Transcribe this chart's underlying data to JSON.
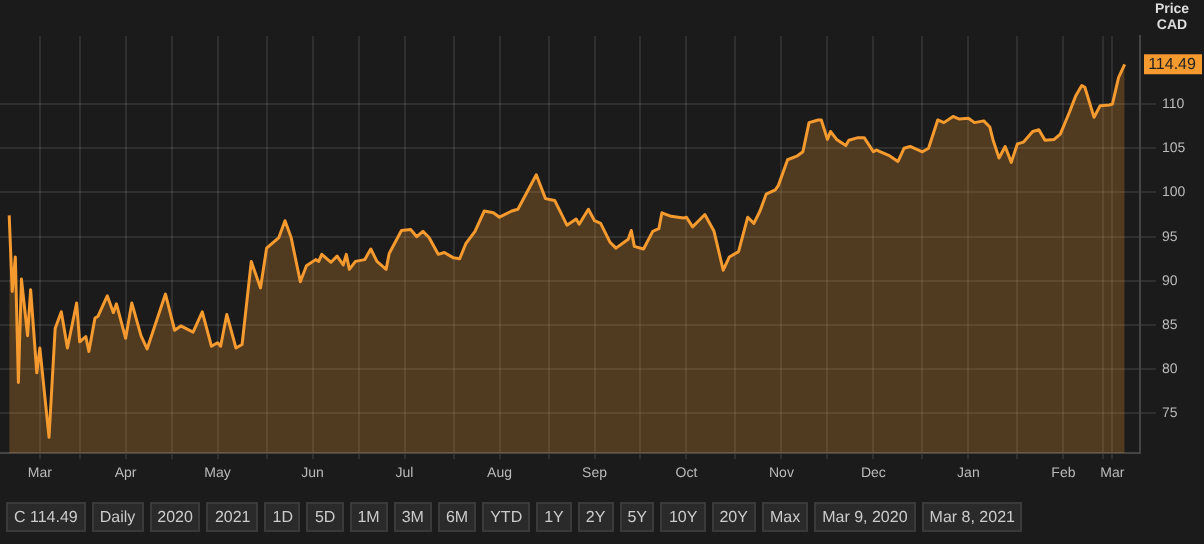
{
  "chart_data": {
    "type": "area",
    "ylabel": "Price CAD",
    "xlim": [
      "2020-03-06",
      "2021-03-13"
    ],
    "ylim": [
      70.5,
      117.7
    ],
    "yticks": [
      75,
      80,
      85,
      90,
      95,
      100,
      105,
      110
    ],
    "xticks": [
      {
        "value": "2020-03-19",
        "label": "Mar"
      },
      {
        "value": "2020-04-01",
        "label": null
      },
      {
        "value": "2020-04-16",
        "label": "Apr"
      },
      {
        "value": "2020-05-01",
        "label": null
      },
      {
        "value": "2020-05-16",
        "label": "May"
      },
      {
        "value": "2020-06-01",
        "label": null
      },
      {
        "value": "2020-06-16",
        "label": "Jun"
      },
      {
        "value": "2020-07-01",
        "label": null
      },
      {
        "value": "2020-07-16",
        "label": "Jul"
      },
      {
        "value": "2020-08-01",
        "label": null
      },
      {
        "value": "2020-08-16",
        "label": "Aug"
      },
      {
        "value": "2020-09-01",
        "label": null
      },
      {
        "value": "2020-09-16",
        "label": "Sep"
      },
      {
        "value": "2020-10-01",
        "label": null
      },
      {
        "value": "2020-10-16",
        "label": "Oct"
      },
      {
        "value": "2020-11-01",
        "label": null
      },
      {
        "value": "2020-11-16",
        "label": "Nov"
      },
      {
        "value": "2020-12-01",
        "label": null
      },
      {
        "value": "2020-12-16",
        "label": "Dec"
      },
      {
        "value": "2021-01-01",
        "label": null
      },
      {
        "value": "2021-01-16",
        "label": "Jan"
      },
      {
        "value": "2021-02-01",
        "label": null
      },
      {
        "value": "2021-02-16",
        "label": "Feb"
      },
      {
        "value": "2021-03-01",
        "label": null
      },
      {
        "value": "2021-03-04",
        "label": "Mar"
      }
    ],
    "grid": true,
    "legend": false,
    "marker": "none",
    "annotations": [
      {
        "text": "114.49",
        "y": 114.49
      },
      "C 114.49",
      "Daily",
      "2020",
      "2021",
      "1D",
      "5D",
      "1M",
      "3M",
      "6M",
      "YTD",
      "1Y",
      "2Y",
      "5Y",
      "10Y",
      "20Y",
      "Max",
      "Mar 9, 2020",
      "Mar 8, 2021"
    ],
    "series": [
      {
        "color": "#f59a2f",
        "x": [
          "2020-03-09",
          "2020-03-10",
          "2020-03-11",
          "2020-03-12",
          "2020-03-13",
          "2020-03-15",
          "2020-03-16",
          "2020-03-18",
          "2020-03-19",
          "2020-03-22",
          "2020-03-24",
          "2020-03-26",
          "2020-03-28",
          "2020-03-31",
          "2020-04-01",
          "2020-04-03",
          "2020-04-04",
          "2020-04-06",
          "2020-04-07",
          "2020-04-10",
          "2020-04-12",
          "2020-04-13",
          "2020-04-16",
          "2020-04-18",
          "2020-04-21",
          "2020-04-23",
          "2020-04-29",
          "2020-05-02",
          "2020-05-04",
          "2020-05-08",
          "2020-05-11",
          "2020-05-14",
          "2020-05-16",
          "2020-05-17",
          "2020-05-19",
          "2020-05-22",
          "2020-05-24",
          "2020-05-27",
          "2020-05-30",
          "2020-06-01",
          "2020-06-05",
          "2020-06-07",
          "2020-06-09",
          "2020-06-12",
          "2020-06-14",
          "2020-06-17",
          "2020-06-18",
          "2020-06-19",
          "2020-06-22",
          "2020-06-24",
          "2020-06-26",
          "2020-06-27",
          "2020-06-28",
          "2020-06-30",
          "2020-07-03",
          "2020-07-05",
          "2020-07-07",
          "2020-07-10",
          "2020-07-11",
          "2020-07-15",
          "2020-07-18",
          "2020-07-20",
          "2020-07-22",
          "2020-07-24",
          "2020-07-27",
          "2020-07-29",
          "2020-08-01",
          "2020-08-03",
          "2020-08-05",
          "2020-08-08",
          "2020-08-11",
          "2020-08-14",
          "2020-08-16",
          "2020-08-20",
          "2020-08-22",
          "2020-08-28",
          "2020-08-31",
          "2020-09-03",
          "2020-09-07",
          "2020-09-10",
          "2020-09-11",
          "2020-09-14",
          "2020-09-16",
          "2020-09-18",
          "2020-09-21",
          "2020-09-23",
          "2020-09-27",
          "2020-09-28",
          "2020-09-29",
          "2020-10-02",
          "2020-10-05",
          "2020-10-07",
          "2020-10-08",
          "2020-10-11",
          "2020-10-15",
          "2020-10-16",
          "2020-10-18",
          "2020-10-20",
          "2020-10-22",
          "2020-10-25",
          "2020-10-28",
          "2020-10-30",
          "2020-11-02",
          "2020-11-05",
          "2020-11-07",
          "2020-11-09",
          "2020-11-11",
          "2020-11-14",
          "2020-11-15",
          "2020-11-18",
          "2020-11-21",
          "2020-11-23",
          "2020-11-25",
          "2020-11-28",
          "2020-11-29",
          "2020-12-01",
          "2020-12-02",
          "2020-12-04",
          "2020-12-07",
          "2020-12-08",
          "2020-12-11",
          "2020-12-13",
          "2020-12-16",
          "2020-12-17",
          "2020-12-21",
          "2020-12-24",
          "2020-12-26",
          "2020-12-28",
          "2021-01-01",
          "2021-01-03",
          "2021-01-06",
          "2021-01-08",
          "2021-01-11",
          "2021-01-13",
          "2021-01-16",
          "2021-01-18",
          "2021-01-21",
          "2021-01-23",
          "2021-01-24",
          "2021-01-26",
          "2021-01-28",
          "2021-01-30",
          "2021-02-01",
          "2021-02-03",
          "2021-02-06",
          "2021-02-08",
          "2021-02-10",
          "2021-02-13",
          "2021-02-15",
          "2021-02-18",
          "2021-02-20",
          "2021-02-22",
          "2021-02-23",
          "2021-02-26",
          "2021-02-28",
          "2021-03-03",
          "2021-03-04",
          "2021-03-06",
          "2021-03-08"
        ],
        "values": [
          97.4,
          88.8,
          92.7,
          78.5,
          90.2,
          83.8,
          89.0,
          79.6,
          82.4,
          72.3,
          84.6,
          86.5,
          82.4,
          87.5,
          83.1,
          83.7,
          82.0,
          85.8,
          86.0,
          88.3,
          86.4,
          87.4,
          83.5,
          87.5,
          83.8,
          82.3,
          88.5,
          84.4,
          84.9,
          84.2,
          86.5,
          82.6,
          83.0,
          82.6,
          86.2,
          82.4,
          82.8,
          92.2,
          89.2,
          93.7,
          94.9,
          96.8,
          94.9,
          89.9,
          91.7,
          92.4,
          92.2,
          93.0,
          92.1,
          92.8,
          91.8,
          93.0,
          91.3,
          92.2,
          92.4,
          93.6,
          92.2,
          91.3,
          93.1,
          95.7,
          95.8,
          95.0,
          95.6,
          94.9,
          93.0,
          93.2,
          92.6,
          92.5,
          94.2,
          95.6,
          97.9,
          97.7,
          97.2,
          97.9,
          98.1,
          102.0,
          99.3,
          99.1,
          96.3,
          97.0,
          96.4,
          98.1,
          96.8,
          96.5,
          94.4,
          93.7,
          94.7,
          95.7,
          93.9,
          93.6,
          95.6,
          95.9,
          97.7,
          97.3,
          97.1,
          97.2,
          96.1,
          96.8,
          97.5,
          95.6,
          91.2,
          92.7,
          93.3,
          97.2,
          96.5,
          97.9,
          99.8,
          100.3,
          100.8,
          103.7,
          104.1,
          104.6,
          107.9,
          108.2,
          108.2,
          106.0,
          106.9,
          106.0,
          105.3,
          105.9,
          106.2,
          106.2,
          104.6,
          104.8,
          104.2,
          103.5,
          105.0,
          105.2,
          104.6,
          105.0,
          108.2,
          107.9,
          108.6,
          108.3,
          108.4,
          107.9,
          108.1,
          107.4,
          106.0,
          103.9,
          105.2,
          103.4,
          105.5,
          105.7,
          106.9,
          107.1,
          105.9,
          106.0,
          106.6,
          109.1,
          110.9,
          112.1,
          111.9,
          108.5,
          109.8,
          109.9,
          110.0,
          113.0,
          114.49
        ]
      }
    ]
  }
}
